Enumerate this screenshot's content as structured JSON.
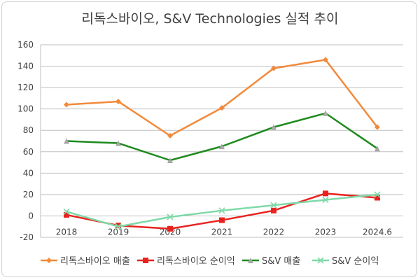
{
  "chart_data": {
    "type": "line",
    "title": "리독스바이오, S&V Technologies 실적 추이",
    "categories": [
      "2018",
      "2019",
      "2020",
      "2021",
      "2022",
      "2023",
      "2024.6"
    ],
    "ylim": [
      -20,
      160
    ],
    "yticks": [
      -20,
      0,
      20,
      40,
      60,
      80,
      100,
      120,
      140,
      160
    ],
    "grid": true,
    "legend_position": "bottom",
    "series": [
      {
        "name": "리독스바이오 매출",
        "color": "#F28A3B",
        "marker": "diamond",
        "values": [
          104,
          107,
          75,
          101,
          138,
          146,
          83
        ]
      },
      {
        "name": "리독스바이오 순이익",
        "color": "#E8231F",
        "marker": "square",
        "values": [
          1,
          -9,
          -12,
          -4,
          5,
          21,
          17
        ]
      },
      {
        "name": "S&V 매출",
        "color": "#1E8A1E",
        "marker": "triangle",
        "values": [
          70,
          68,
          52,
          65,
          83,
          96,
          63
        ]
      },
      {
        "name": "S&V 순이익",
        "color": "#7FD9A8",
        "marker": "x",
        "values": [
          4,
          -10,
          -1,
          5,
          10,
          15,
          20
        ]
      }
    ]
  }
}
